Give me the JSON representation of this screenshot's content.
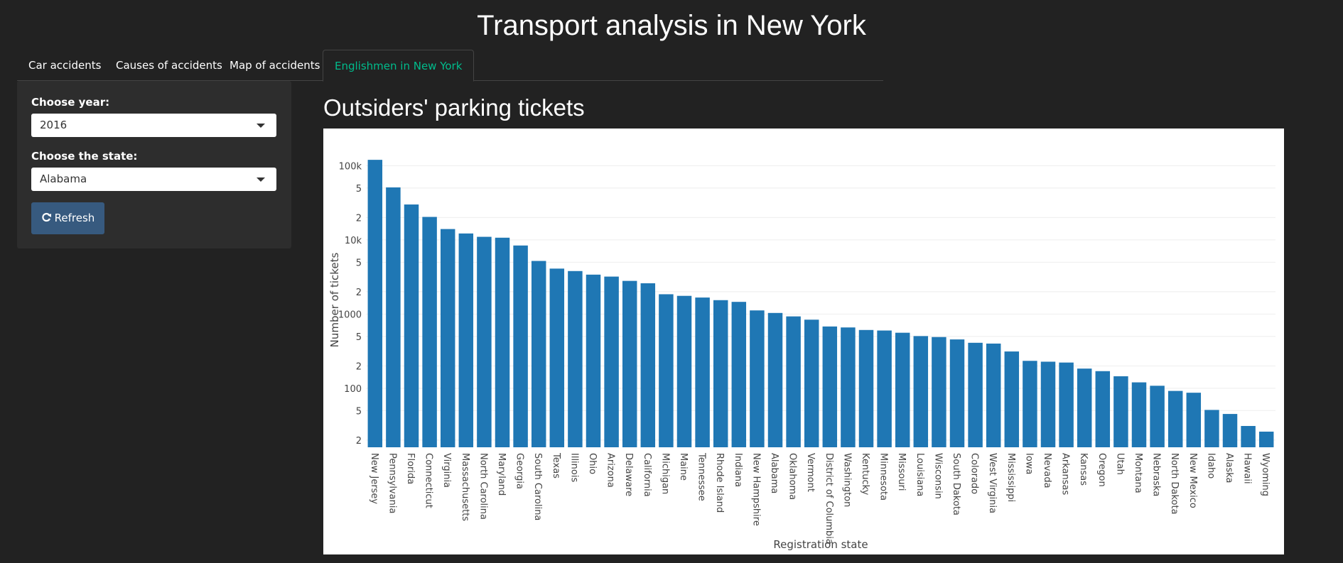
{
  "header": {
    "title": "Transport analysis in New York"
  },
  "tabs": [
    "Car accidents",
    "Causes of accidents",
    "Map of accidents",
    "Englishmen in New York"
  ],
  "sidebar": {
    "year_label": "Choose year:",
    "year_value": "2016",
    "state_label": "Choose the state:",
    "state_value": "Alabama",
    "button": "Refresh"
  },
  "chart_data": {
    "type": "bar",
    "title": "Outsiders' parking tickets",
    "x_label": "Registration state",
    "y_label": "Number of tickets",
    "log_scale": true,
    "grid": true,
    "color": "#1f77b4",
    "categories": [
      "New Jersey",
      "Pennsylvania",
      "Florida",
      "Connecticut",
      "Virginia",
      "Massachusetts",
      "North Carolina",
      "Maryland",
      "Georgia",
      "South Carolina",
      "Texas",
      "Illinois",
      "Ohio",
      "Arizona",
      "Delaware",
      "California",
      "Michigan",
      "Maine",
      "Tennessee",
      "Rhode Island",
      "Indiana",
      "New Hampshire",
      "Alabama",
      "Oklahoma",
      "Vermont",
      "District of Columbia",
      "Washington",
      "Kentucky",
      "Minnesota",
      "Missouri",
      "Louisiana",
      "Wisconsin",
      "South Dakota",
      "Colorado",
      "West Virginia",
      "Mississippi",
      "Iowa",
      "Nevada",
      "Arkansas",
      "Kansas",
      "Oregon",
      "Utah",
      "Montana",
      "Nebraska",
      "North Dakota",
      "New Mexico",
      "Idaho",
      "Alaska",
      "Hawaii",
      "Wyoming"
    ],
    "values": [
      120000,
      51000,
      30000,
      20400,
      14000,
      12200,
      11000,
      10700,
      8400,
      5200,
      4100,
      3800,
      3400,
      3200,
      2800,
      2600,
      1850,
      1760,
      1670,
      1540,
      1460,
      1120,
      1035,
      930,
      840,
      680,
      660,
      610,
      600,
      560,
      505,
      490,
      455,
      410,
      400,
      313,
      234,
      228,
      222,
      184,
      170,
      145,
      120,
      108,
      92,
      87,
      51,
      45,
      31,
      26
    ],
    "ylim": [
      16,
      150000
    ],
    "yticks": [
      {
        "value": 20,
        "label": "2"
      },
      {
        "value": 50,
        "label": "5"
      },
      100,
      {
        "value": 200,
        "label": "2"
      },
      {
        "value": 500,
        "label": "5"
      },
      1000,
      {
        "value": 2000,
        "label": "2"
      },
      {
        "value": 5000,
        "label": "5"
      },
      {
        "value": 10000,
        "label": "10k"
      },
      {
        "value": 20000,
        "label": "2"
      },
      {
        "value": 50000,
        "label": "5"
      },
      {
        "value": 100000,
        "label": "100k"
      }
    ]
  }
}
